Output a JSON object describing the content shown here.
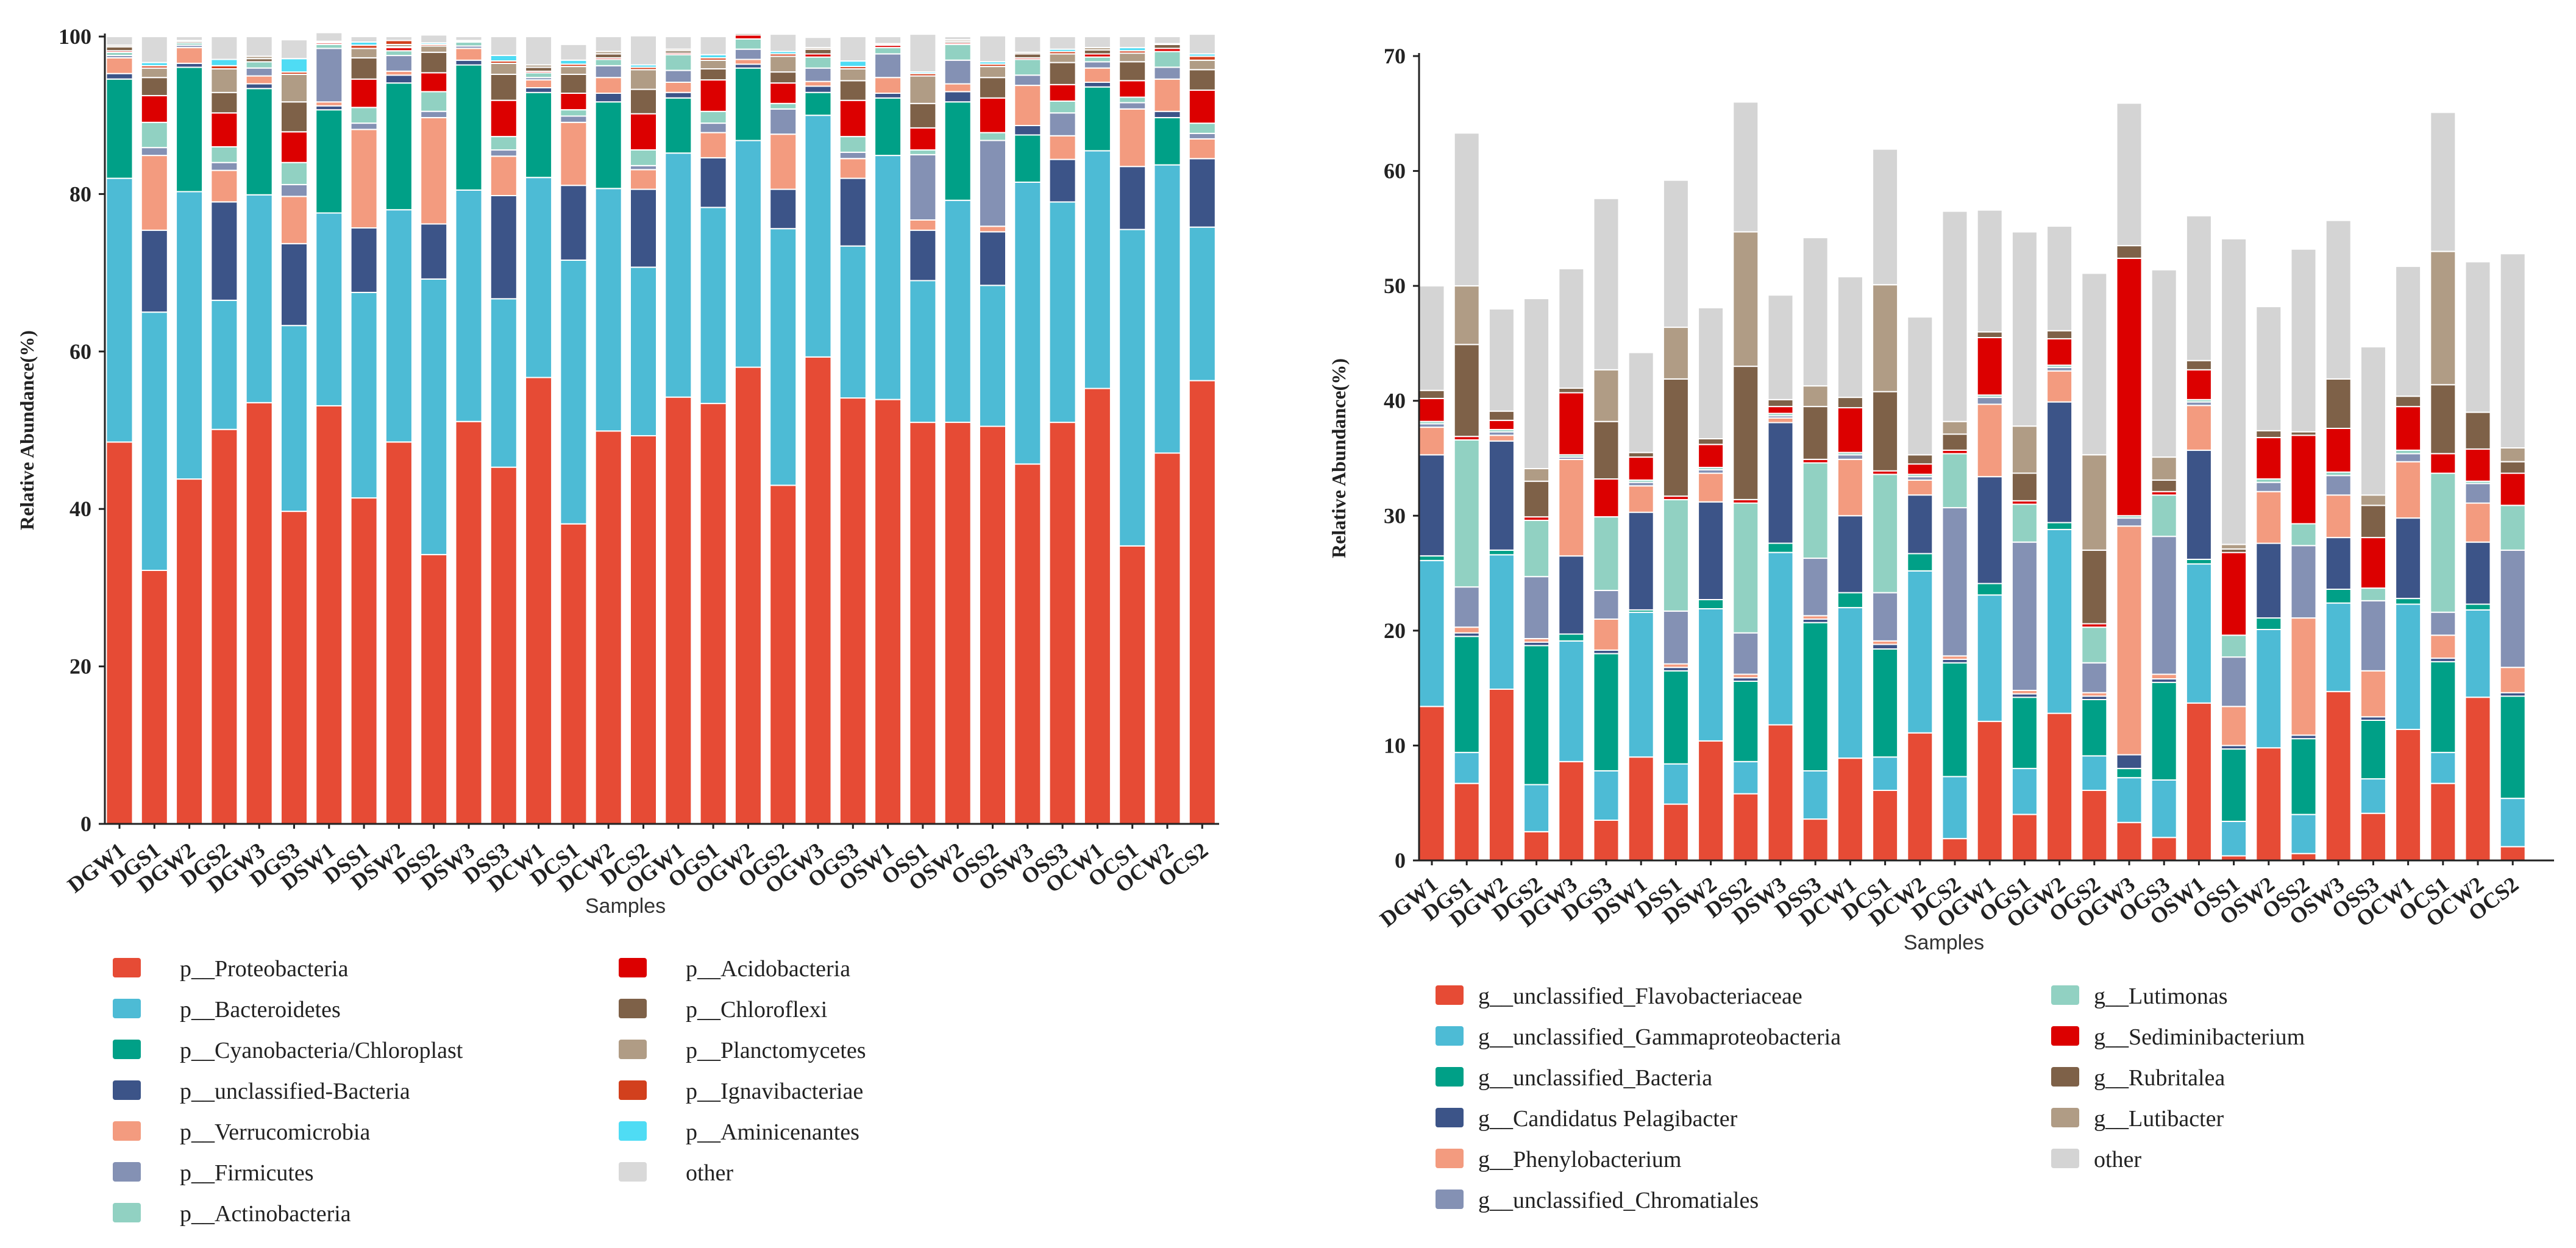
{
  "figure": {
    "panels": "two stacked bar charts"
  },
  "chart_data": [
    {
      "type": "bar",
      "stacked": true,
      "xlabel": "Samples",
      "ylabel": "Relative Abundance(%)",
      "ylim": [
        0,
        100
      ],
      "yticks": [
        0,
        20,
        40,
        60,
        80,
        100
      ],
      "categories": [
        "DGW1",
        "DGS1",
        "DGW2",
        "DGS2",
        "DGW3",
        "DGS3",
        "DSW1",
        "DSS1",
        "DSW2",
        "DSS2",
        "DSW3",
        "DSS3",
        "DCW1",
        "DCS1",
        "DCW2",
        "DCS2",
        "OGW1",
        "OGS1",
        "OGW2",
        "OGS2",
        "OGW3",
        "OGS3",
        "OSW1",
        "OSS1",
        "OSW2",
        "OSS2",
        "OSW3",
        "OSS3",
        "OCW1",
        "OCS1",
        "OCW2",
        "OCS2"
      ],
      "legend_columns": 2,
      "series": [
        {
          "name": "p__Proteobacteria",
          "color": "#e64b35",
          "values": [
            48.5,
            32.2,
            43.8,
            50.1,
            53.5,
            39.7,
            53.1,
            41.4,
            48.5,
            34.2,
            51.1,
            45.3,
            56.7,
            38.1,
            49.9,
            49.3,
            54.2,
            53.4,
            58.0,
            43.0,
            59.3,
            54.1,
            53.9,
            51.0,
            51.0,
            50.5,
            45.7,
            51.0,
            55.3,
            35.3,
            47.1,
            56.3
          ]
        },
        {
          "name": "p__Bacteroidetes",
          "color": "#4dbbd5",
          "values": [
            33.5,
            32.8,
            36.5,
            16.4,
            26.4,
            23.6,
            24.5,
            26.1,
            29.5,
            35.0,
            29.4,
            21.4,
            25.4,
            33.5,
            30.8,
            21.4,
            31.0,
            24.9,
            28.8,
            32.6,
            30.7,
            19.3,
            31.0,
            18.0,
            28.2,
            17.9,
            35.8,
            28.0,
            30.2,
            40.2,
            36.6,
            19.5
          ]
        },
        {
          "name": "p__Cyanobacteria/Chloroplast",
          "color": "#00a087",
          "values": [
            12.6,
            0,
            15.8,
            0,
            13.5,
            0,
            13.1,
            0,
            16.1,
            0,
            15.9,
            0,
            10.8,
            0,
            11.0,
            0,
            7.0,
            0,
            9.2,
            0,
            2.9,
            0,
            7.3,
            0,
            12.5,
            0,
            6.0,
            0,
            8.1,
            0,
            6.0,
            0
          ]
        },
        {
          "name": "p__unclassified-Bacteria",
          "color": "#3c5488",
          "values": [
            0.7,
            10.4,
            0.5,
            12.5,
            0.6,
            10.4,
            0.5,
            8.2,
            1.0,
            7.0,
            0.6,
            13.1,
            0.6,
            9.5,
            1.1,
            9.9,
            0.7,
            6.3,
            0.5,
            5.0,
            0.8,
            8.6,
            0.6,
            6.4,
            1.3,
            6.8,
            1.2,
            5.4,
            0.6,
            8.0,
            0.8,
            8.7
          ]
        },
        {
          "name": "p__Verrucomicrobia",
          "color": "#f39b7f",
          "values": [
            2.0,
            9.5,
            2.0,
            4.0,
            1.0,
            6.0,
            0.5,
            12.5,
            0.5,
            13.5,
            1.5,
            5.0,
            1.0,
            8.0,
            2.0,
            2.5,
            1.3,
            3.2,
            0.6,
            7.0,
            0.6,
            2.5,
            2.0,
            1.3,
            1.0,
            0.7,
            5.1,
            3.0,
            1.8,
            7.3,
            4.1,
            2.5
          ]
        },
        {
          "name": "p__Firmicutes",
          "color": "#8491b4",
          "values": [
            0.3,
            1.0,
            0.3,
            1.0,
            1.0,
            1.5,
            6.8,
            0.8,
            2.0,
            0.8,
            0.3,
            0.8,
            0.3,
            0.8,
            1.5,
            0.5,
            1.5,
            1.2,
            1.3,
            3.2,
            1.7,
            0.8,
            3.0,
            8.3,
            3.0,
            10.9,
            1.3,
            2.9,
            0.8,
            0.8,
            1.5,
            0.7
          ]
        },
        {
          "name": "p__Actinobacteria",
          "color": "#91d1c2",
          "values": [
            0.4,
            3.2,
            0.3,
            2.0,
            0.8,
            2.8,
            0.5,
            2.0,
            0.6,
            2.5,
            0.5,
            1.7,
            0.6,
            0.8,
            0.8,
            2.0,
            2.0,
            1.5,
            1.3,
            0.7,
            1.4,
            2.0,
            0.8,
            0.6,
            2.0,
            1.0,
            2.0,
            1.5,
            0.6,
            0.7,
            2.0,
            1.3
          ]
        },
        {
          "name": "p__Acidobacteria",
          "color": "#dc0000",
          "values": [
            0.2,
            3.4,
            0,
            4.3,
            0,
            3.9,
            0.2,
            3.6,
            0.4,
            2.4,
            0,
            4.6,
            0.2,
            2.1,
            0.2,
            4.6,
            0.2,
            4.0,
            0.5,
            2.6,
            0.4,
            4.6,
            0.3,
            2.8,
            0.2,
            4.4,
            0.2,
            2.1,
            0.4,
            2.1,
            0.4,
            4.2
          ]
        },
        {
          "name": "p__Chloroflexi",
          "color": "#7e6148",
          "values": [
            0.5,
            2.3,
            0.2,
            2.6,
            0.4,
            3.8,
            0.1,
            2.7,
            0.1,
            2.6,
            0.1,
            3.3,
            0.5,
            2.4,
            0.5,
            3.1,
            0.3,
            1.4,
            0.2,
            1.4,
            0.6,
            2.5,
            0.1,
            3.1,
            0.2,
            2.6,
            0.5,
            2.8,
            0.5,
            2.4,
            0.5,
            2.6
          ]
        },
        {
          "name": "p__Planctomycetes",
          "color": "#b09c85",
          "values": [
            0.2,
            1.2,
            0.1,
            3.0,
            0.3,
            3.5,
            0.1,
            1.2,
            0.3,
            0.8,
            0.1,
            1.4,
            0.3,
            1.0,
            0.3,
            2.5,
            0.2,
            1.1,
            0.1,
            2.0,
            0.2,
            1.5,
            0.1,
            3.5,
            0.2,
            1.4,
            0.2,
            1.1,
            0.3,
            1.1,
            0.1,
            1.2
          ]
        },
        {
          "name": "p__Ignavibacteriae",
          "color": "#d2401d",
          "values": [
            0,
            0.3,
            0,
            0.4,
            0,
            0.3,
            0,
            0.4,
            0.5,
            0.2,
            0,
            0.3,
            0,
            0.3,
            0,
            0.3,
            0,
            0.3,
            0,
            0.3,
            0,
            0.3,
            0,
            0.3,
            0,
            0.3,
            0,
            0.3,
            0,
            0.3,
            0,
            0.5
          ]
        },
        {
          "name": "p__Aminicenantes",
          "color": "#4fdcf4",
          "values": [
            0,
            0.4,
            0,
            0.8,
            0,
            1.7,
            0,
            0.4,
            0,
            0.2,
            0,
            0.7,
            0,
            0.5,
            0,
            0.3,
            0,
            0.4,
            0,
            0.3,
            0,
            0.7,
            0,
            0.2,
            0,
            0.3,
            0,
            0.3,
            0,
            0.4,
            0,
            0.3
          ]
        },
        {
          "name": "other",
          "color": "#d9d9d9",
          "values": [
            1.1,
            3.3,
            0.5,
            2.9,
            2.5,
            2.4,
            1.1,
            0.7,
            0.5,
            1.0,
            0.5,
            2.4,
            3.6,
            2.0,
            1.9,
            3.7,
            1.6,
            2.3,
            0,
            2.2,
            1.3,
            3.1,
            0.9,
            4.8,
            0.4,
            3.3,
            2.0,
            1.6,
            1.4,
            1.4,
            0.9,
            2.5
          ]
        }
      ]
    },
    {
      "type": "bar",
      "stacked": true,
      "xlabel": "Samples",
      "ylabel": "Relative Abundance(%)",
      "ylim": [
        0,
        70
      ],
      "yticks": [
        0,
        10,
        20,
        30,
        40,
        50,
        60,
        70
      ],
      "categories": [
        "DGW1",
        "DGS1",
        "DGW2",
        "DGS2",
        "DGW3",
        "DGS3",
        "DSW1",
        "DSS1",
        "DSW2",
        "DSS2",
        "DSW3",
        "DSS3",
        "DCW1",
        "DCS1",
        "DCW2",
        "DCS2",
        "OGW1",
        "OGS1",
        "OGW2",
        "OGS2",
        "OGW3",
        "OGS3",
        "OSW1",
        "OSS1",
        "OSW2",
        "OSS2",
        "OSW3",
        "OSS3",
        "OCW1",
        "OCS1",
        "OCW2",
        "OCS2"
      ],
      "legend_columns": 2,
      "series": [
        {
          "name": "g__unclassified_Flavobacteriaceae",
          "color": "#e64b35",
          "values": [
            13.4,
            6.7,
            14.9,
            2.5,
            8.6,
            3.5,
            9.0,
            4.9,
            10.4,
            5.8,
            11.8,
            3.6,
            8.9,
            6.1,
            11.1,
            1.9,
            12.1,
            4.0,
            12.8,
            6.1,
            3.3,
            2.0,
            13.7,
            0.4,
            9.8,
            0.6,
            14.7,
            4.1,
            11.4,
            6.7,
            14.2,
            1.2
          ]
        },
        {
          "name": "g__unclassified_Gammaproteobacteria",
          "color": "#4dbbd5",
          "values": [
            12.7,
            2.7,
            11.7,
            4.1,
            10.5,
            4.3,
            12.6,
            3.5,
            11.5,
            2.8,
            15.0,
            4.2,
            13.1,
            2.9,
            14.1,
            5.4,
            11.0,
            4.0,
            16.0,
            3.0,
            3.9,
            5.0,
            12.1,
            3.0,
            10.3,
            3.4,
            7.7,
            3.0,
            10.9,
            2.7,
            7.6,
            4.2
          ]
        },
        {
          "name": "g__unclassified_Bacteria",
          "color": "#00a087",
          "values": [
            0.4,
            10.1,
            0.4,
            12.1,
            0.6,
            10.2,
            0.2,
            8.1,
            0.8,
            7.0,
            0.8,
            12.9,
            1.3,
            9.4,
            1.5,
            9.9,
            1.0,
            6.2,
            0.6,
            4.9,
            0.8,
            8.5,
            0.4,
            6.3,
            1.0,
            6.6,
            1.2,
            5.1,
            0.5,
            7.9,
            0.5,
            8.9
          ]
        },
        {
          "name": "g__Candidatus Pelagibacter",
          "color": "#3c5488",
          "values": [
            8.8,
            0.3,
            9.5,
            0.3,
            6.8,
            0.3,
            8.5,
            0.3,
            8.5,
            0.3,
            10.5,
            0.3,
            6.7,
            0.4,
            5.1,
            0.3,
            9.3,
            0.3,
            10.5,
            0.3,
            1.2,
            0.3,
            9.5,
            0.3,
            6.5,
            0.3,
            4.5,
            0.3,
            7.0,
            0.3,
            5.4,
            0.3
          ]
        },
        {
          "name": "g__Phenylobacterium",
          "color": "#f39b7f",
          "values": [
            2.4,
            0.5,
            0.5,
            0.3,
            8.4,
            2.7,
            2.3,
            0.3,
            2.5,
            0.3,
            0.4,
            0.3,
            4.9,
            0.3,
            1.3,
            0.3,
            6.3,
            0.3,
            2.7,
            0.3,
            19.9,
            0.4,
            3.9,
            3.4,
            4.5,
            10.2,
            3.7,
            4.0,
            4.9,
            2.0,
            3.4,
            2.2
          ]
        },
        {
          "name": "g__unclassified_Chromatiales",
          "color": "#8491b4",
          "values": [
            0.3,
            3.5,
            0.3,
            5.4,
            0.2,
            2.5,
            0.3,
            4.6,
            0.3,
            3.6,
            0.2,
            5.0,
            0.4,
            4.2,
            0.3,
            12.9,
            0.6,
            12.9,
            0.3,
            2.6,
            0.7,
            12.0,
            0.3,
            4.3,
            0.8,
            6.3,
            1.7,
            6.1,
            0.7,
            2.0,
            1.7,
            10.2
          ]
        },
        {
          "name": "g__Lutimonas",
          "color": "#91d1c2",
          "values": [
            0.2,
            12.8,
            0.2,
            4.9,
            0.2,
            6.4,
            0.2,
            9.7,
            0.2,
            11.3,
            0.2,
            8.3,
            0.2,
            10.3,
            0.2,
            4.7,
            0.2,
            3.3,
            0.2,
            3.1,
            0.2,
            3.6,
            0.2,
            1.9,
            0.3,
            1.9,
            0.3,
            1.1,
            0.3,
            12.1,
            0.2,
            3.9
          ]
        },
        {
          "name": "g__Sediminibacterium",
          "color": "#dc0000",
          "values": [
            2.0,
            0.3,
            0.8,
            0.3,
            5.4,
            3.3,
            2.0,
            0.3,
            2.0,
            0.3,
            0.6,
            0.3,
            3.9,
            0.3,
            0.9,
            0.3,
            5.0,
            0.3,
            2.3,
            0.3,
            22.4,
            0.3,
            2.6,
            7.2,
            3.6,
            7.7,
            3.8,
            4.4,
            3.8,
            1.7,
            2.8,
            2.8
          ]
        },
        {
          "name": "g__Rubritalea",
          "color": "#7e6148",
          "values": [
            0.7,
            8.0,
            0.8,
            3.1,
            0.4,
            5.0,
            0.4,
            10.2,
            0.5,
            11.6,
            0.6,
            4.6,
            0.9,
            6.9,
            0.8,
            1.4,
            0.5,
            2.4,
            0.7,
            6.4,
            1.1,
            1.0,
            0.8,
            0.3,
            0.6,
            0.3,
            4.3,
            2.8,
            0.9,
            6.0,
            3.2,
            1.0
          ]
        },
        {
          "name": "g__Lutibacter",
          "color": "#b09c85",
          "values": [
            0,
            5.1,
            0,
            1.1,
            0,
            4.5,
            0,
            4.5,
            0,
            11.7,
            0,
            1.8,
            0,
            9.3,
            0,
            1.1,
            0,
            4.1,
            0,
            8.3,
            0,
            2.0,
            0,
            0.4,
            0,
            0,
            0,
            0.9,
            0,
            11.6,
            0,
            1.2
          ]
        },
        {
          "name": "other",
          "color": "#d4d4d4",
          "values": [
            9.1,
            13.3,
            8.9,
            14.8,
            10.4,
            14.9,
            8.7,
            12.8,
            11.4,
            11.3,
            9.1,
            12.9,
            10.5,
            11.8,
            12.0,
            18.3,
            10.6,
            16.9,
            9.1,
            15.8,
            12.4,
            16.3,
            12.6,
            26.6,
            10.8,
            15.9,
            13.8,
            12.9,
            11.3,
            12.1,
            13.1,
            16.9
          ]
        }
      ]
    }
  ]
}
